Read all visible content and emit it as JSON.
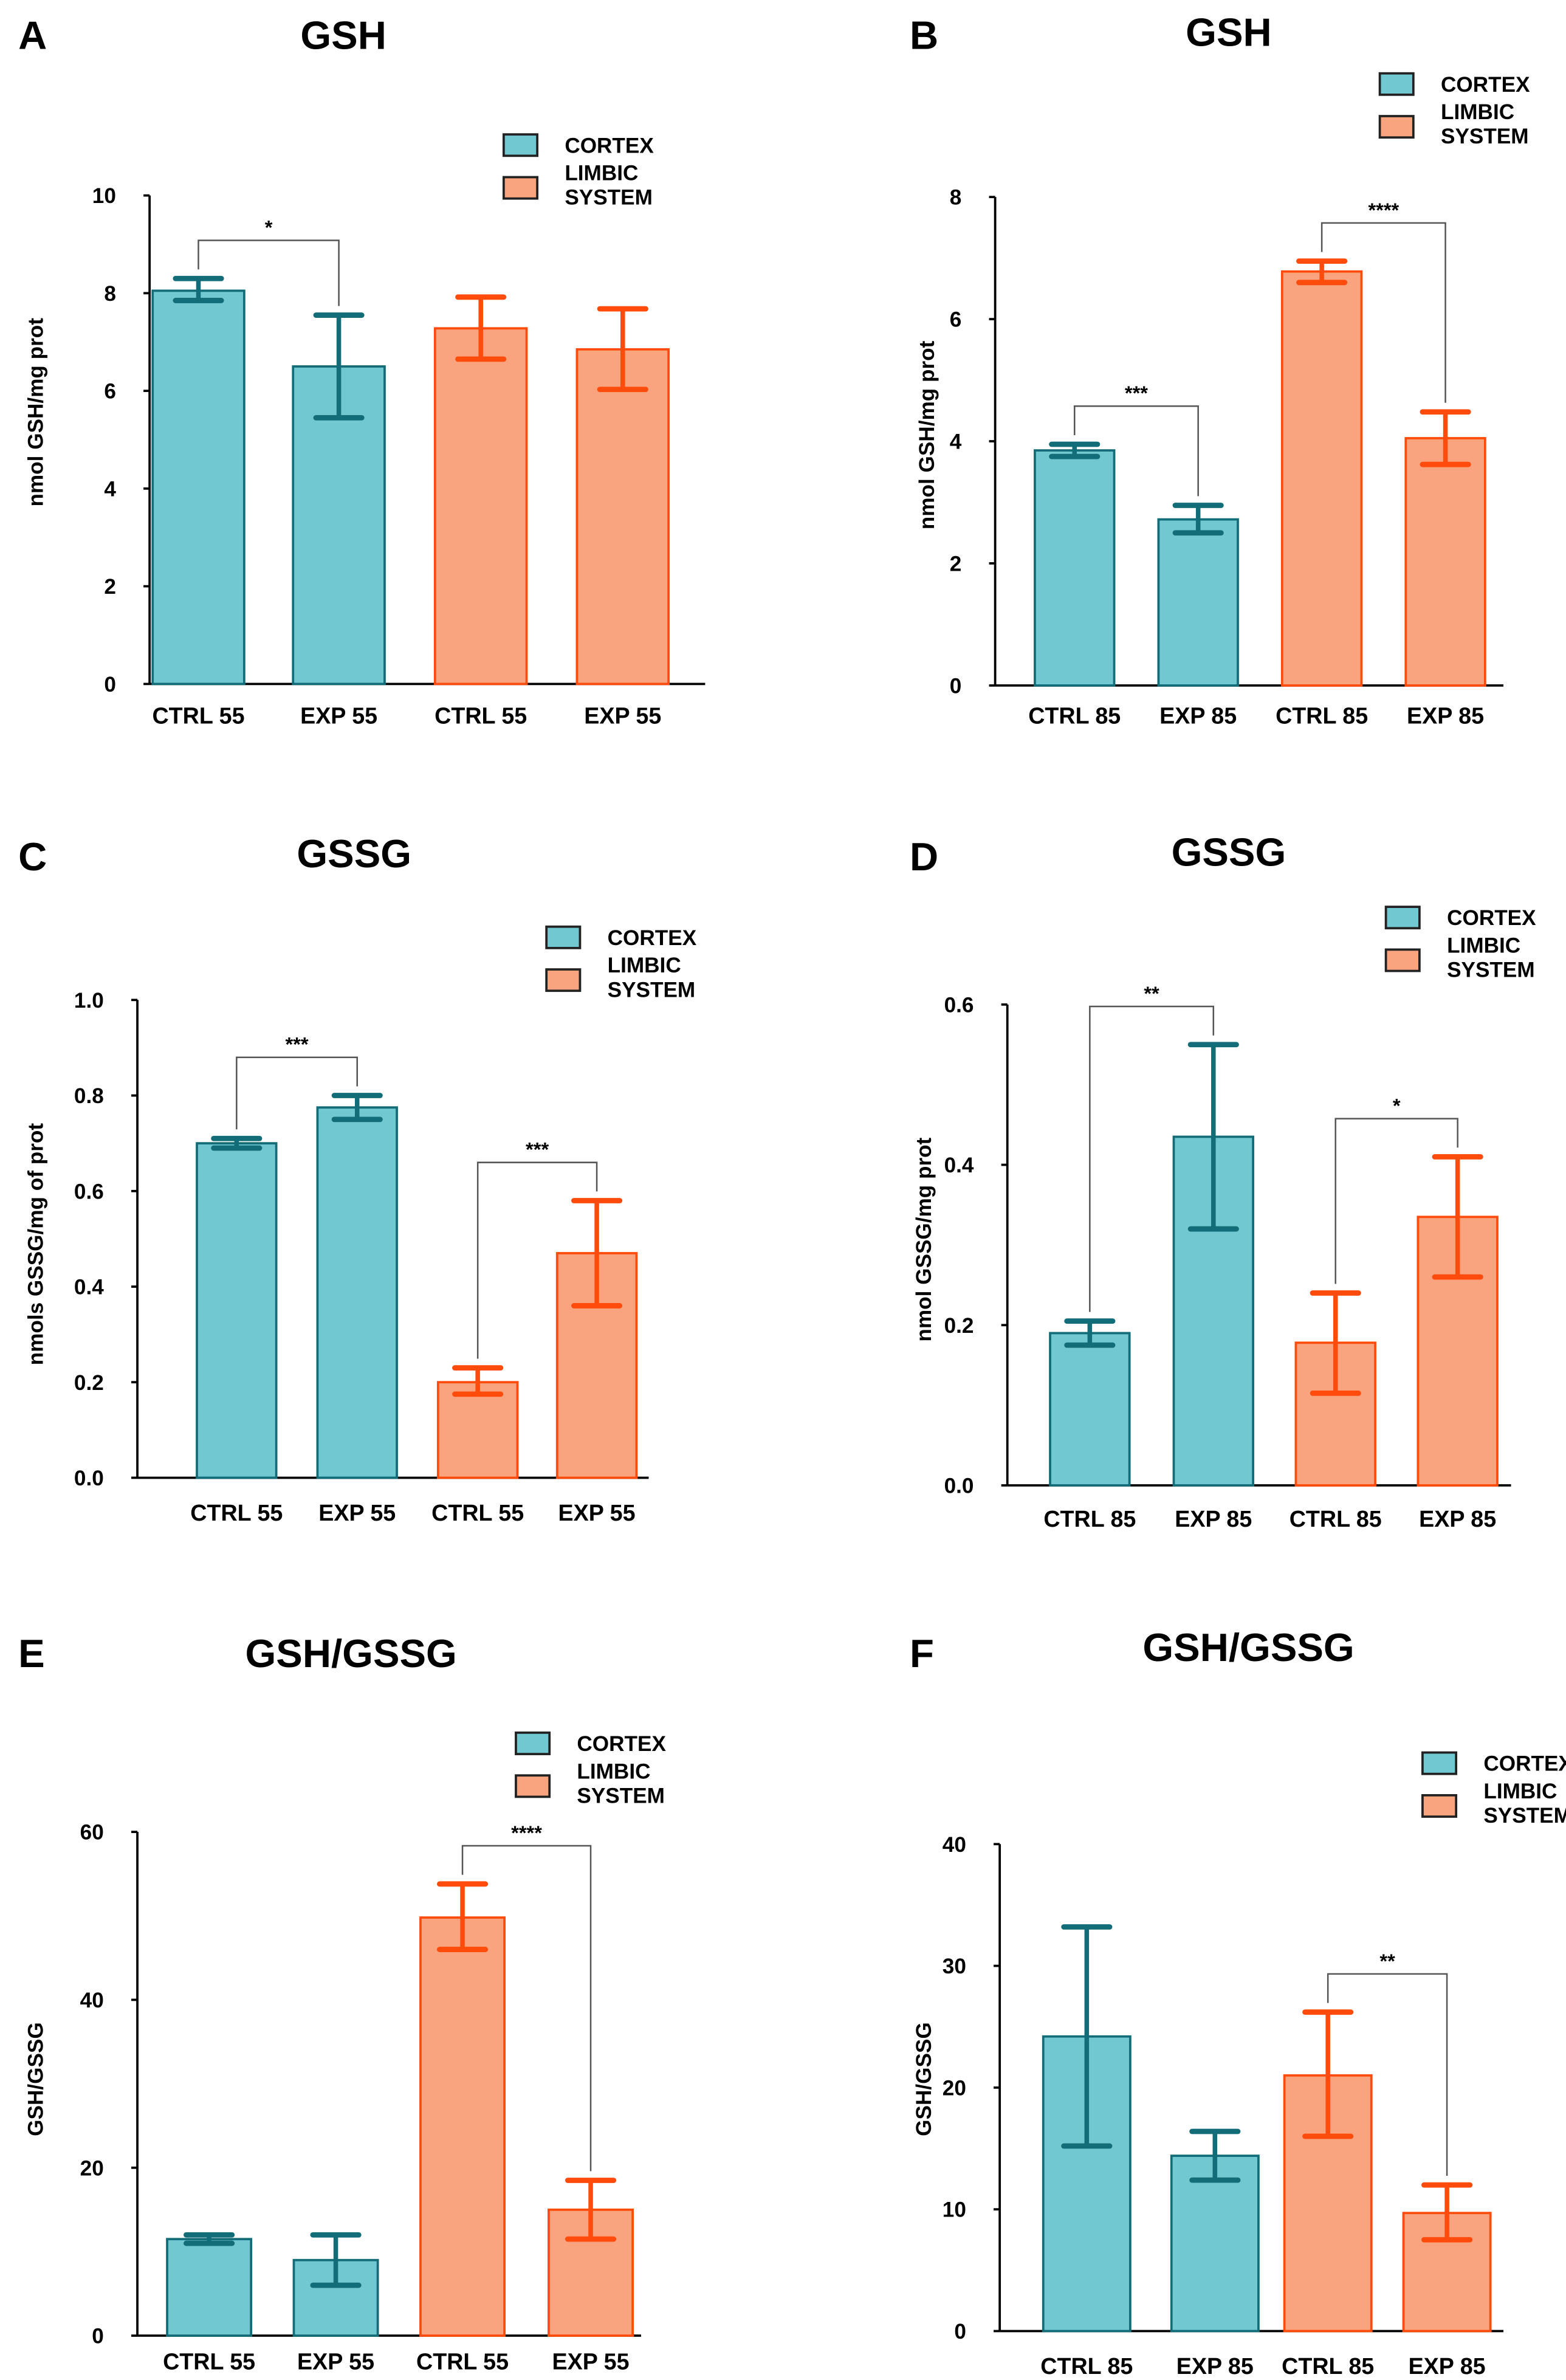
{
  "colors": {
    "cortex_fill": "#72c8d0",
    "cortex_edge": "#136d78",
    "limbic_fill": "#f9a47f",
    "limbic_edge": "#ff4c0c"
  },
  "chart_data": [
    {
      "panel": "A",
      "type": "bar",
      "title": "GSH",
      "ylabel": "nmol GSH/mg prot",
      "ylim": [
        0,
        10
      ],
      "yticks": [
        "0",
        "2",
        "4",
        "6",
        "8",
        "10"
      ],
      "ytick_values": [
        0,
        2,
        4,
        6,
        8,
        10
      ],
      "categories": [
        "CTRL 55",
        "EXP 55",
        "CTRL 55",
        "EXP 55"
      ],
      "groups": [
        "cortex",
        "cortex",
        "limbic",
        "limbic"
      ],
      "values": [
        8.05,
        6.5,
        7.28,
        6.85
      ],
      "err_low": [
        7.85,
        5.45,
        6.65,
        6.03
      ],
      "err_high": [
        8.3,
        7.55,
        7.92,
        7.68
      ],
      "legend": [
        "CORTEX",
        "LIMBIC SYSTEM"
      ],
      "significance": [
        {
          "pair": [
            0,
            1
          ],
          "label": "*"
        }
      ]
    },
    {
      "panel": "B",
      "type": "bar",
      "title": "GSH",
      "ylabel": "nmol GSH/mg prot",
      "ylim": [
        0,
        8
      ],
      "yticks": [
        "0",
        "2",
        "4",
        "6",
        "8"
      ],
      "ytick_values": [
        0,
        2,
        4,
        6,
        8
      ],
      "categories": [
        "CTRL 85",
        "EXP 85",
        "CTRL 85",
        "EXP 85"
      ],
      "groups": [
        "cortex",
        "cortex",
        "limbic",
        "limbic"
      ],
      "values": [
        3.85,
        2.72,
        6.78,
        4.05
      ],
      "err_low": [
        3.75,
        2.5,
        6.6,
        3.62
      ],
      "err_high": [
        3.95,
        2.95,
        6.95,
        4.48
      ],
      "legend": [
        "CORTEX",
        "LIMBIC SYSTEM"
      ],
      "significance": [
        {
          "pair": [
            0,
            1
          ],
          "label": "***"
        },
        {
          "pair": [
            2,
            3
          ],
          "label": "****"
        }
      ]
    },
    {
      "panel": "C",
      "type": "bar",
      "title": "GSSG",
      "ylabel": "nmols GSSG/mg of prot",
      "ylim": [
        0,
        1
      ],
      "yticks": [
        "0.0",
        "0.2",
        "0.4",
        "0.6",
        "0.8",
        "1.0"
      ],
      "ytick_values": [
        0,
        0.2,
        0.4,
        0.6,
        0.8,
        1.0
      ],
      "categories": [
        "CTRL 55",
        "EXP 55",
        "CTRL 55",
        "EXP 55"
      ],
      "groups": [
        "cortex",
        "cortex",
        "limbic",
        "limbic"
      ],
      "values": [
        0.7,
        0.775,
        0.2,
        0.47
      ],
      "err_low": [
        0.69,
        0.75,
        0.175,
        0.36
      ],
      "err_high": [
        0.71,
        0.8,
        0.23,
        0.58
      ],
      "legend": [
        "CORTEX",
        "LIMBIC SYSTEM"
      ],
      "significance": [
        {
          "pair": [
            0,
            1
          ],
          "label": "***"
        },
        {
          "pair": [
            2,
            3
          ],
          "label": "***"
        }
      ]
    },
    {
      "panel": "D",
      "type": "bar",
      "title": "GSSG",
      "ylabel": "nmol GSSG/mg prot",
      "ylim": [
        0,
        0.6
      ],
      "yticks": [
        "0.0",
        "0.2",
        "0.4",
        "0.6"
      ],
      "ytick_values": [
        0,
        0.2,
        0.4,
        0.6
      ],
      "categories": [
        "CTRL 85",
        "EXP 85",
        "CTRL 85",
        "EXP 85"
      ],
      "groups": [
        "cortex",
        "cortex",
        "limbic",
        "limbic"
      ],
      "values": [
        0.19,
        0.435,
        0.178,
        0.335
      ],
      "err_low": [
        0.175,
        0.32,
        0.115,
        0.26
      ],
      "err_high": [
        0.205,
        0.55,
        0.24,
        0.41
      ],
      "legend": [
        "CORTEX",
        "LIMBIC SYSTEM"
      ],
      "significance": [
        {
          "pair": [
            0,
            1
          ],
          "label": "**"
        },
        {
          "pair": [
            2,
            3
          ],
          "label": "*"
        }
      ]
    },
    {
      "panel": "E",
      "type": "bar",
      "title": "GSH/GSSG",
      "ylabel": "GSH/GSSG",
      "ylim": [
        0,
        60
      ],
      "yticks": [
        "0",
        "20",
        "40",
        "60"
      ],
      "ytick_values": [
        0,
        20,
        40,
        60
      ],
      "categories": [
        "CTRL 55",
        "EXP 55",
        "CTRL 55",
        "EXP 55"
      ],
      "groups": [
        "cortex",
        "cortex",
        "limbic",
        "limbic"
      ],
      "values": [
        11.5,
        9.0,
        49.8,
        15.0
      ],
      "err_low": [
        11.0,
        6.0,
        46.0,
        11.5
      ],
      "err_high": [
        12.0,
        12.0,
        53.8,
        18.5
      ],
      "legend": [
        "CORTEX",
        "LIMBIC SYSTEM"
      ],
      "significance": [
        {
          "pair": [
            2,
            3
          ],
          "label": "****"
        }
      ]
    },
    {
      "panel": "F",
      "type": "bar",
      "title": "GSH/GSSG",
      "ylabel": "GSH/GSSG",
      "ylim": [
        0,
        40
      ],
      "yticks": [
        "0",
        "10",
        "20",
        "30",
        "40"
      ],
      "ytick_values": [
        0,
        10,
        20,
        30,
        40
      ],
      "categories": [
        "CTRL 85",
        "EXP 85",
        "CTRL 85",
        "EXP 85"
      ],
      "groups": [
        "cortex",
        "cortex",
        "limbic",
        "limbic"
      ],
      "values": [
        24.2,
        14.4,
        21.0,
        9.7
      ],
      "err_low": [
        15.2,
        12.4,
        16.0,
        7.5
      ],
      "err_high": [
        33.2,
        16.4,
        26.2,
        12.0
      ],
      "legend": [
        "CORTEX",
        "LIMBIC SYSTEM"
      ],
      "significance": [
        {
          "pair": [
            2,
            3
          ],
          "label": "**"
        }
      ]
    }
  ]
}
